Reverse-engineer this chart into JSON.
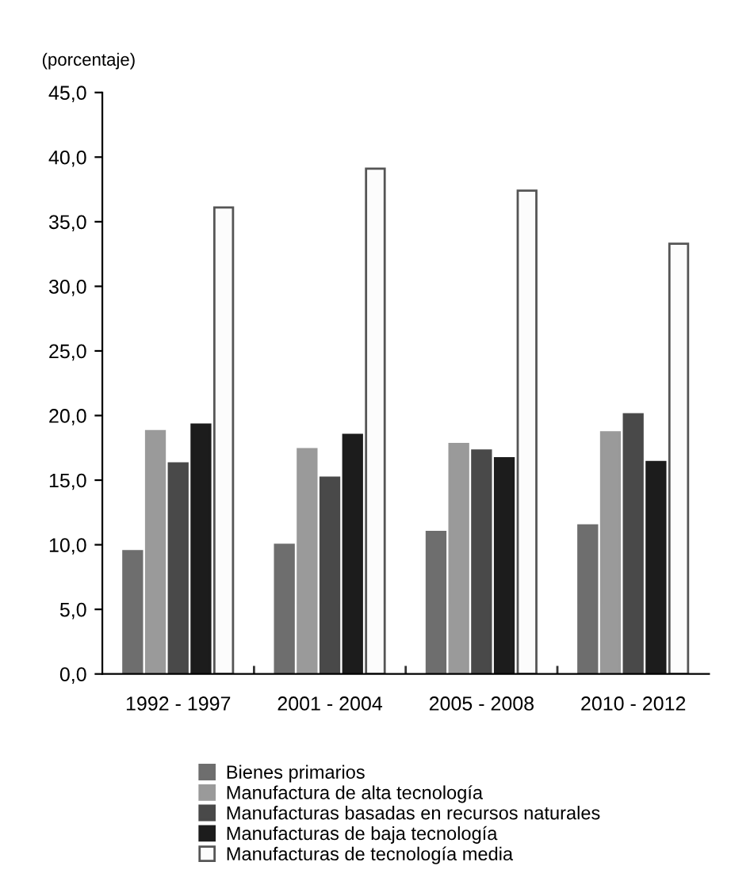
{
  "chart_data": {
    "type": "bar",
    "ylabel": "(porcentaje)",
    "categories": [
      "1992 - 1997",
      "2001 - 2004",
      "2005 - 2008",
      "2010 - 2012"
    ],
    "series": [
      {
        "name": "Bienes primarios",
        "color": "#6e6e6e",
        "values": [
          9.5,
          10.0,
          11.0,
          11.5
        ]
      },
      {
        "name": "Manufactura de alta tecnología",
        "color": "#9a9a9a",
        "values": [
          18.8,
          17.4,
          17.8,
          18.7
        ]
      },
      {
        "name": "Manufacturas basadas en recursos naturales",
        "color": "#494949",
        "values": [
          16.3,
          15.2,
          17.3,
          20.1
        ]
      },
      {
        "name": "Manufacturas de baja tecnología",
        "color": "#1c1c1c",
        "values": [
          19.3,
          18.5,
          16.7,
          16.4
        ]
      },
      {
        "name": "Manufacturas de tecnología media",
        "color": "#fcfcfc",
        "values": [
          36.1,
          39.1,
          37.4,
          33.3
        ]
      }
    ],
    "ylim": [
      0,
      45
    ],
    "yticks": [
      {
        "value": 0,
        "label": "0,0"
      },
      {
        "value": 5,
        "label": "5,0"
      },
      {
        "value": 10,
        "label": "10,0"
      },
      {
        "value": 15,
        "label": "15,0"
      },
      {
        "value": 20,
        "label": "20,0"
      },
      {
        "value": 25,
        "label": "25,0"
      },
      {
        "value": 30,
        "label": "30,0"
      },
      {
        "value": 35,
        "label": "35,0"
      },
      {
        "value": 40,
        "label": "40,0"
      },
      {
        "value": 45,
        "label": "45,0"
      }
    ],
    "grid": false,
    "legend": "bottom"
  }
}
